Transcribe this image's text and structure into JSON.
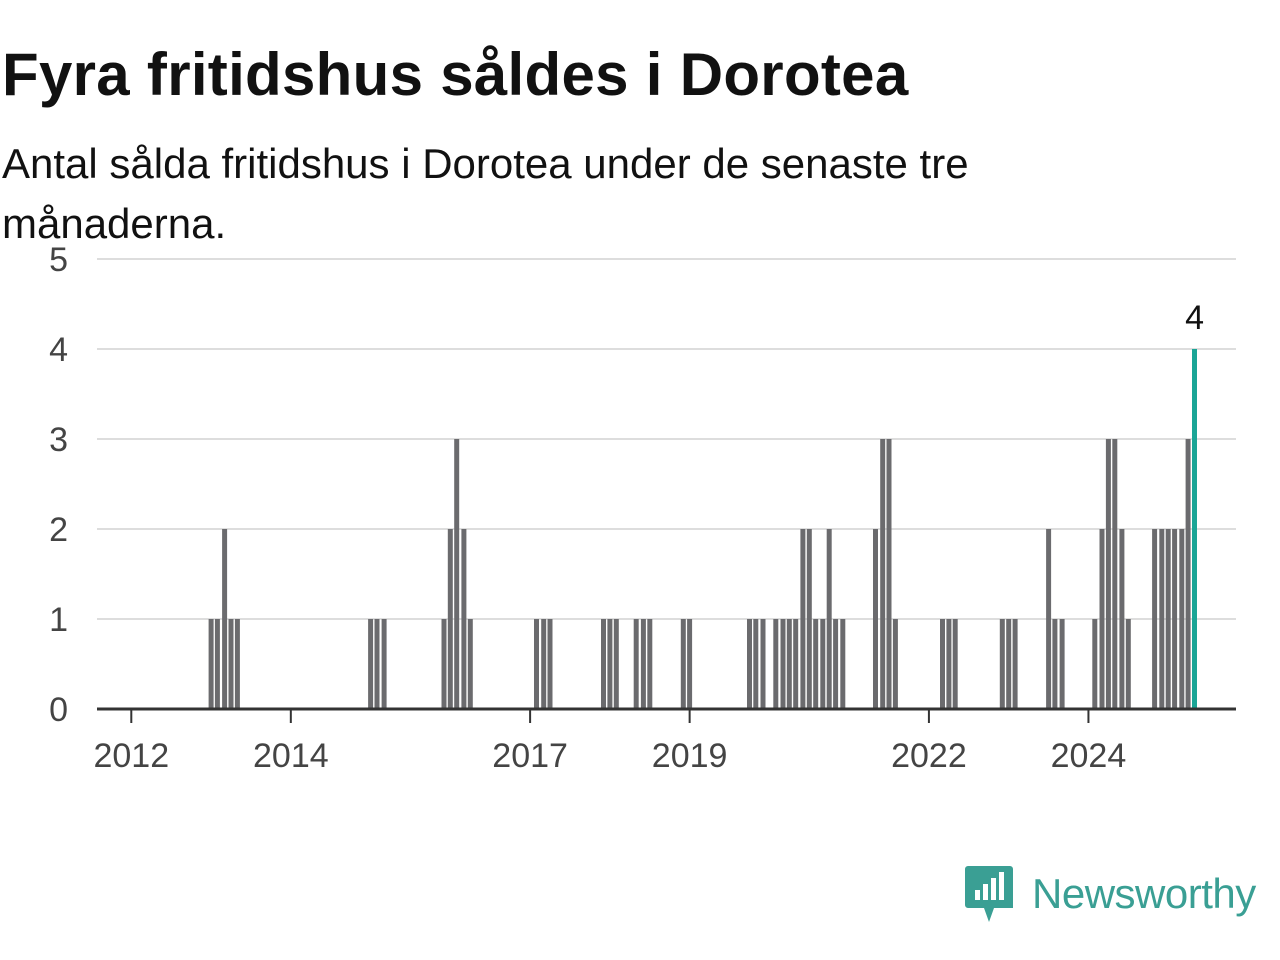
{
  "chart_data": {
    "type": "bar",
    "title": "Fyra fritidshus såldes i Dorotea",
    "subtitle": "Antal sålda fritidshus i Dorotea under de senaste tre månaderna.",
    "xlabel": "",
    "ylabel": "",
    "ylim": [
      0,
      5
    ],
    "yticks": [
      0,
      1,
      2,
      3,
      4,
      5
    ],
    "xticks": [
      2012,
      2014,
      2017,
      2019,
      2022,
      2024
    ],
    "xlim": [
      2011.57,
      2025.85
    ],
    "grid": true,
    "colors": {
      "bar": "#6b6b6e",
      "highlight": "#1aa596",
      "grid": "#dddddd",
      "axis": "#333333"
    },
    "x": [
      2013.0,
      2013.08,
      2013.17,
      2013.25,
      2013.33,
      2015.0,
      2015.08,
      2015.17,
      2015.92,
      2016.0,
      2016.08,
      2016.17,
      2016.25,
      2017.08,
      2017.17,
      2017.25,
      2017.92,
      2018.0,
      2018.08,
      2018.33,
      2018.42,
      2018.5,
      2018.92,
      2019.0,
      2019.75,
      2019.83,
      2019.92,
      2020.08,
      2020.17,
      2020.25,
      2020.33,
      2020.42,
      2020.5,
      2020.58,
      2020.67,
      2020.75,
      2020.83,
      2020.92,
      2021.33,
      2021.42,
      2021.5,
      2021.58,
      2022.17,
      2022.25,
      2022.33,
      2022.92,
      2023.0,
      2023.08,
      2023.5,
      2023.58,
      2023.67,
      2024.08,
      2024.17,
      2024.25,
      2024.33,
      2024.42,
      2024.5,
      2024.83,
      2024.92,
      2025.0,
      2025.08,
      2025.17,
      2025.25,
      2025.33
    ],
    "values": [
      1,
      1,
      2,
      1,
      1,
      1,
      1,
      1,
      1,
      2,
      3,
      2,
      1,
      1,
      1,
      1,
      1,
      1,
      1,
      1,
      1,
      1,
      1,
      1,
      1,
      1,
      1,
      1,
      1,
      1,
      1,
      2,
      2,
      1,
      1,
      2,
      1,
      1,
      2,
      3,
      3,
      1,
      1,
      1,
      1,
      1,
      1,
      1,
      2,
      1,
      1,
      1,
      2,
      3,
      3,
      2,
      1,
      2,
      2,
      2,
      2,
      2,
      3,
      4
    ],
    "highlight_label": "4"
  },
  "branding": {
    "logo_text": "Newsworthy",
    "logo_icon": "newsworthy-chart-icon",
    "color": "#3a9f94"
  }
}
